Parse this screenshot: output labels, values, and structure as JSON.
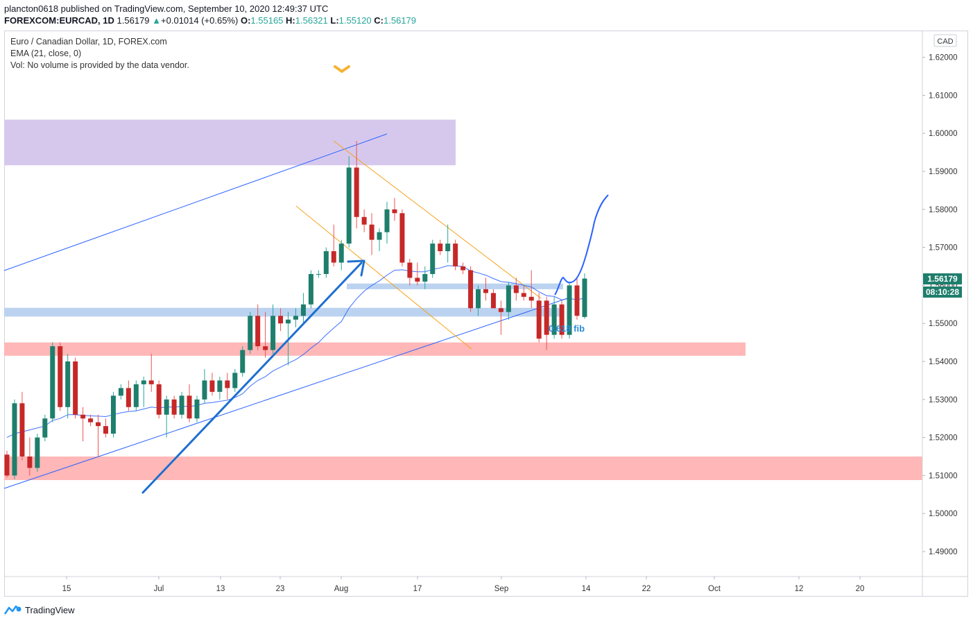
{
  "header": {
    "published_line": "plancton0618 published on TradingView.com, September 10, 2020 12:49:37 UTC",
    "symbol": "FOREXCOM:EURCAD, 1D",
    "last": "1.56179",
    "change_arrow": "▲",
    "change": "+0.01014 (+0.65%)",
    "o_label": "O:",
    "o_value": "1.55165",
    "h_label": "H:",
    "h_value": "1.56321",
    "l_label": "L:",
    "l_value": "1.55120",
    "c_label": "C:",
    "c_value": "1.56179"
  },
  "legend": {
    "title": "Euro / Canadian Dollar, 1D, FOREX.com",
    "ema": "EMA (21, close, 0)",
    "vol": "Vol: No volume is provided by the data vendor."
  },
  "price_axis": {
    "currency": "CAD",
    "last_price": "1.56179",
    "countdown": "08:10:28"
  },
  "annotations": {
    "fib_label": "0.618 fib"
  },
  "footer": {
    "brand": "TradingView",
    "logo_icon": "tradingview-logo-icon"
  },
  "colors": {
    "up": "#26a69a",
    "down": "#ef5350",
    "body_up": "#1e7e6c",
    "body_down": "#c62828",
    "ema": "#2962ff",
    "supply_zone": "#d6c8ed",
    "support_blue": "#bbd3f0",
    "demand_red": "#ffb7b7",
    "channel_orange": "#f7a21b",
    "arrow_blue": "#1e6fd0"
  },
  "chart_data": {
    "type": "candlestick",
    "title": "Euro / Canadian Dollar, 1D, FOREX.com",
    "ylim": [
      1.483,
      1.627
    ],
    "y_ticks": [
      "1.62000",
      "1.61000",
      "1.60000",
      "1.59000",
      "1.58000",
      "1.57000",
      "1.56000",
      "1.55000",
      "1.54000",
      "1.53000",
      "1.52000",
      "1.51000",
      "1.50000",
      "1.49000"
    ],
    "x_ticks": [
      "15",
      "Jul",
      "13",
      "23",
      "Aug",
      "17",
      "Sep",
      "14",
      "22",
      "Oct",
      "12",
      "20"
    ],
    "series": [
      {
        "name": "EURCAD",
        "ohlc": [
          [
            1.5155,
            1.5165,
            1.5095,
            1.51
          ],
          [
            1.51,
            1.53,
            1.509,
            1.529
          ],
          [
            1.529,
            1.532,
            1.514,
            1.515
          ],
          [
            1.515,
            1.52,
            1.51,
            1.512
          ],
          [
            1.512,
            1.521,
            1.511,
            1.52
          ],
          [
            1.52,
            1.526,
            1.519,
            1.525
          ],
          [
            1.525,
            1.545,
            1.524,
            1.544
          ],
          [
            1.544,
            1.545,
            1.527,
            1.528
          ],
          [
            1.528,
            1.542,
            1.525,
            1.54
          ],
          [
            1.54,
            1.541,
            1.525,
            1.526
          ],
          [
            1.526,
            1.528,
            1.519,
            1.525
          ],
          [
            1.525,
            1.526,
            1.523,
            1.524
          ],
          [
            1.524,
            1.526,
            1.515,
            1.523
          ],
          [
            1.523,
            1.525,
            1.52,
            1.521
          ],
          [
            1.521,
            1.532,
            1.52,
            1.531
          ],
          [
            1.531,
            1.534,
            1.53,
            1.533
          ],
          [
            1.533,
            1.535,
            1.527,
            1.528
          ],
          [
            1.528,
            1.535,
            1.527,
            1.534
          ],
          [
            1.534,
            1.536,
            1.528,
            1.535
          ],
          [
            1.535,
            1.542,
            1.532,
            1.534
          ],
          [
            1.534,
            1.535,
            1.525,
            1.526
          ],
          [
            1.526,
            1.531,
            1.52,
            1.53
          ],
          [
            1.53,
            1.531,
            1.525,
            1.526
          ],
          [
            1.526,
            1.532,
            1.525,
            1.531
          ],
          [
            1.531,
            1.534,
            1.524,
            1.525
          ],
          [
            1.525,
            1.531,
            1.524,
            1.53
          ],
          [
            1.53,
            1.538,
            1.529,
            1.535
          ],
          [
            1.535,
            1.537,
            1.531,
            1.532
          ],
          [
            1.532,
            1.536,
            1.53,
            1.535
          ],
          [
            1.535,
            1.537,
            1.53,
            1.533
          ],
          [
            1.533,
            1.538,
            1.532,
            1.537
          ],
          [
            1.537,
            1.544,
            1.536,
            1.543
          ],
          [
            1.543,
            1.553,
            1.542,
            1.552
          ],
          [
            1.552,
            1.555,
            1.543,
            1.544
          ],
          [
            1.544,
            1.553,
            1.541,
            1.543
          ],
          [
            1.543,
            1.555,
            1.542,
            1.552
          ],
          [
            1.552,
            1.554,
            1.548,
            1.55
          ],
          [
            1.55,
            1.553,
            1.539,
            1.551
          ],
          [
            1.551,
            1.554,
            1.549,
            1.552
          ],
          [
            1.552,
            1.558,
            1.55,
            1.555
          ],
          [
            1.555,
            1.564,
            1.554,
            1.563
          ],
          [
            1.563,
            1.564,
            1.562,
            1.563
          ],
          [
            1.563,
            1.57,
            1.562,
            1.569
          ],
          [
            1.569,
            1.576,
            1.565,
            1.566
          ],
          [
            1.566,
            1.572,
            1.564,
            1.571
          ],
          [
            1.571,
            1.594,
            1.57,
            1.591
          ],
          [
            1.591,
            1.598,
            1.575,
            1.578
          ],
          [
            1.578,
            1.58,
            1.574,
            1.576
          ],
          [
            1.576,
            1.579,
            1.568,
            1.572
          ],
          [
            1.572,
            1.575,
            1.569,
            1.574
          ],
          [
            1.574,
            1.582,
            1.571,
            1.58
          ],
          [
            1.58,
            1.583,
            1.577,
            1.579
          ],
          [
            1.579,
            1.58,
            1.565,
            1.566
          ],
          [
            1.566,
            1.567,
            1.56,
            1.562
          ],
          [
            1.562,
            1.566,
            1.56,
            1.561
          ],
          [
            1.561,
            1.565,
            1.559,
            1.563
          ],
          [
            1.563,
            1.572,
            1.562,
            1.571
          ],
          [
            1.571,
            1.572,
            1.568,
            1.569
          ],
          [
            1.569,
            1.576,
            1.566,
            1.571
          ],
          [
            1.571,
            1.572,
            1.564,
            1.565
          ],
          [
            1.565,
            1.566,
            1.563,
            1.564
          ],
          [
            1.564,
            1.565,
            1.553,
            1.554
          ],
          [
            1.554,
            1.56,
            1.552,
            1.559
          ],
          [
            1.559,
            1.562,
            1.556,
            1.558
          ],
          [
            1.558,
            1.559,
            1.554,
            1.554
          ],
          [
            1.554,
            1.556,
            1.547,
            1.553
          ],
          [
            1.553,
            1.561,
            1.551,
            1.56
          ],
          [
            1.56,
            1.562,
            1.556,
            1.558
          ],
          [
            1.558,
            1.56,
            1.556,
            1.557
          ],
          [
            1.557,
            1.564,
            1.554,
            1.556
          ],
          [
            1.556,
            1.558,
            1.545,
            1.546
          ],
          [
            1.556,
            1.557,
            1.543,
            1.547
          ],
          [
            1.547,
            1.557,
            1.546,
            1.555
          ],
          [
            1.555,
            1.556,
            1.546,
            1.547
          ],
          [
            1.547,
            1.561,
            1.546,
            1.56
          ],
          [
            1.56,
            1.562,
            1.551,
            1.552
          ],
          [
            1.5517,
            1.5632,
            1.5512,
            1.5618
          ]
        ]
      },
      {
        "name": "EMA (21, close, 0)",
        "values": [
          1.52,
          1.521,
          1.5215,
          1.522,
          1.5225,
          1.523,
          1.5245,
          1.525,
          1.526,
          1.526,
          1.5258,
          1.5257,
          1.5256,
          1.5255,
          1.526,
          1.5265,
          1.5268,
          1.527,
          1.5275,
          1.528,
          1.5278,
          1.528,
          1.528,
          1.5282,
          1.5282,
          1.5284,
          1.529,
          1.5292,
          1.5295,
          1.5298,
          1.5305,
          1.5315,
          1.5335,
          1.535,
          1.536,
          1.5375,
          1.5385,
          1.5395,
          1.5405,
          1.5418,
          1.5435,
          1.545,
          1.547,
          1.5488,
          1.5505,
          1.554,
          1.5565,
          1.5585,
          1.56,
          1.5612,
          1.5627,
          1.564,
          1.5641,
          1.5638,
          1.5636,
          1.5636,
          1.5642,
          1.5646,
          1.5652,
          1.5651,
          1.565,
          1.5638,
          1.5633,
          1.5627,
          1.5618,
          1.561,
          1.5608,
          1.5605,
          1.56,
          1.5596,
          1.5583,
          1.5573,
          1.5571,
          1.5562,
          1.5566,
          1.5562,
          1.5567
        ]
      }
    ]
  }
}
